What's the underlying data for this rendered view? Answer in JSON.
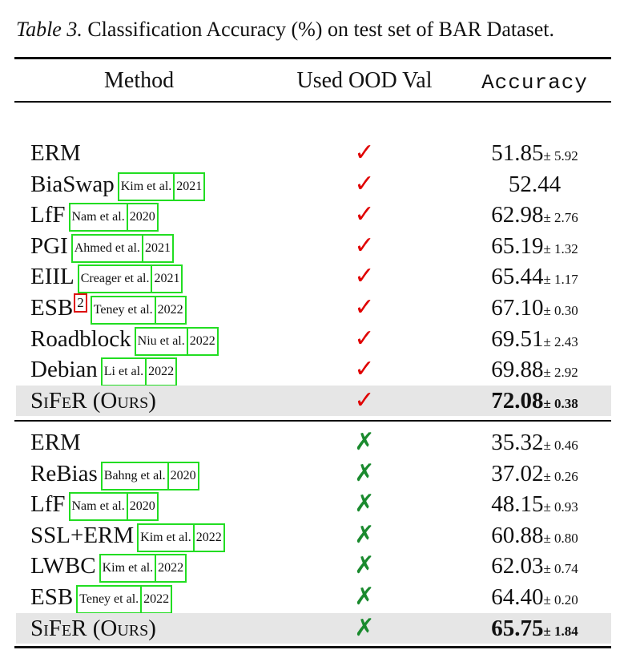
{
  "caption": {
    "label": "Table 3.",
    "text": "Classification Accuracy (%) on test set of BAR Dataset."
  },
  "headers": {
    "method": "Method",
    "ood": "Used OOD Val",
    "accuracy": "Accuracy"
  },
  "symbols": {
    "check": "✓",
    "cross": "✗"
  },
  "group1": [
    {
      "method": "ERM",
      "author": "",
      "year": "",
      "value": "51.85",
      "std": "± 5.92"
    },
    {
      "method": "BiaSwap",
      "author": "Kim et al.",
      "year": "2021",
      "value": "52.44",
      "std": ""
    },
    {
      "method": "LfF",
      "author": "Nam et al.",
      "year": "2020",
      "value": "62.98",
      "std": "± 2.76"
    },
    {
      "method": "PGI",
      "author": "Ahmed et al.",
      "year": "2021",
      "value": "65.19",
      "std": "± 1.32"
    },
    {
      "method": "EIIL",
      "author": "Creager et al.",
      "year": "2021",
      "value": "65.44",
      "std": "± 1.17"
    },
    {
      "method": "ESB",
      "footnote": "2",
      "author": "Teney et al.",
      "year": "2022",
      "value": "67.10",
      "std": "± 0.30"
    },
    {
      "method": "Roadblock",
      "author": "Niu et al.",
      "year": "2022",
      "value": "69.51",
      "std": "± 2.43"
    },
    {
      "method": "Debian",
      "author": "Li et al.",
      "year": "2022",
      "value": "69.88",
      "std": "± 2.92"
    }
  ],
  "ours1": {
    "method": "SiFeR (Ours)",
    "value": "72.08",
    "std": "± 0.38"
  },
  "group2": [
    {
      "method": "ERM",
      "author": "",
      "year": "",
      "value": "35.32",
      "std": "± 0.46"
    },
    {
      "method": "ReBias",
      "author": "Bahng et al.",
      "year": "2020",
      "value": "37.02",
      "std": "± 0.26"
    },
    {
      "method": "LfF",
      "author": "Nam et al.",
      "year": "2020",
      "value": "48.15",
      "std": "± 0.93"
    },
    {
      "method": "SSL+ERM",
      "author": "Kim et al.",
      "year": "2022",
      "value": "60.88",
      "std": "± 0.80"
    },
    {
      "method": "LWBC",
      "author": "Kim et al.",
      "year": "2022",
      "value": "62.03",
      "std": "± 0.74"
    },
    {
      "method": "ESB",
      "author": "Teney et al.",
      "year": "2022",
      "value": "64.40",
      "std": "± 0.20"
    }
  ],
  "ours2": {
    "method": "SiFeR (Ours)",
    "value": "65.75",
    "std": "± 1.84"
  }
}
